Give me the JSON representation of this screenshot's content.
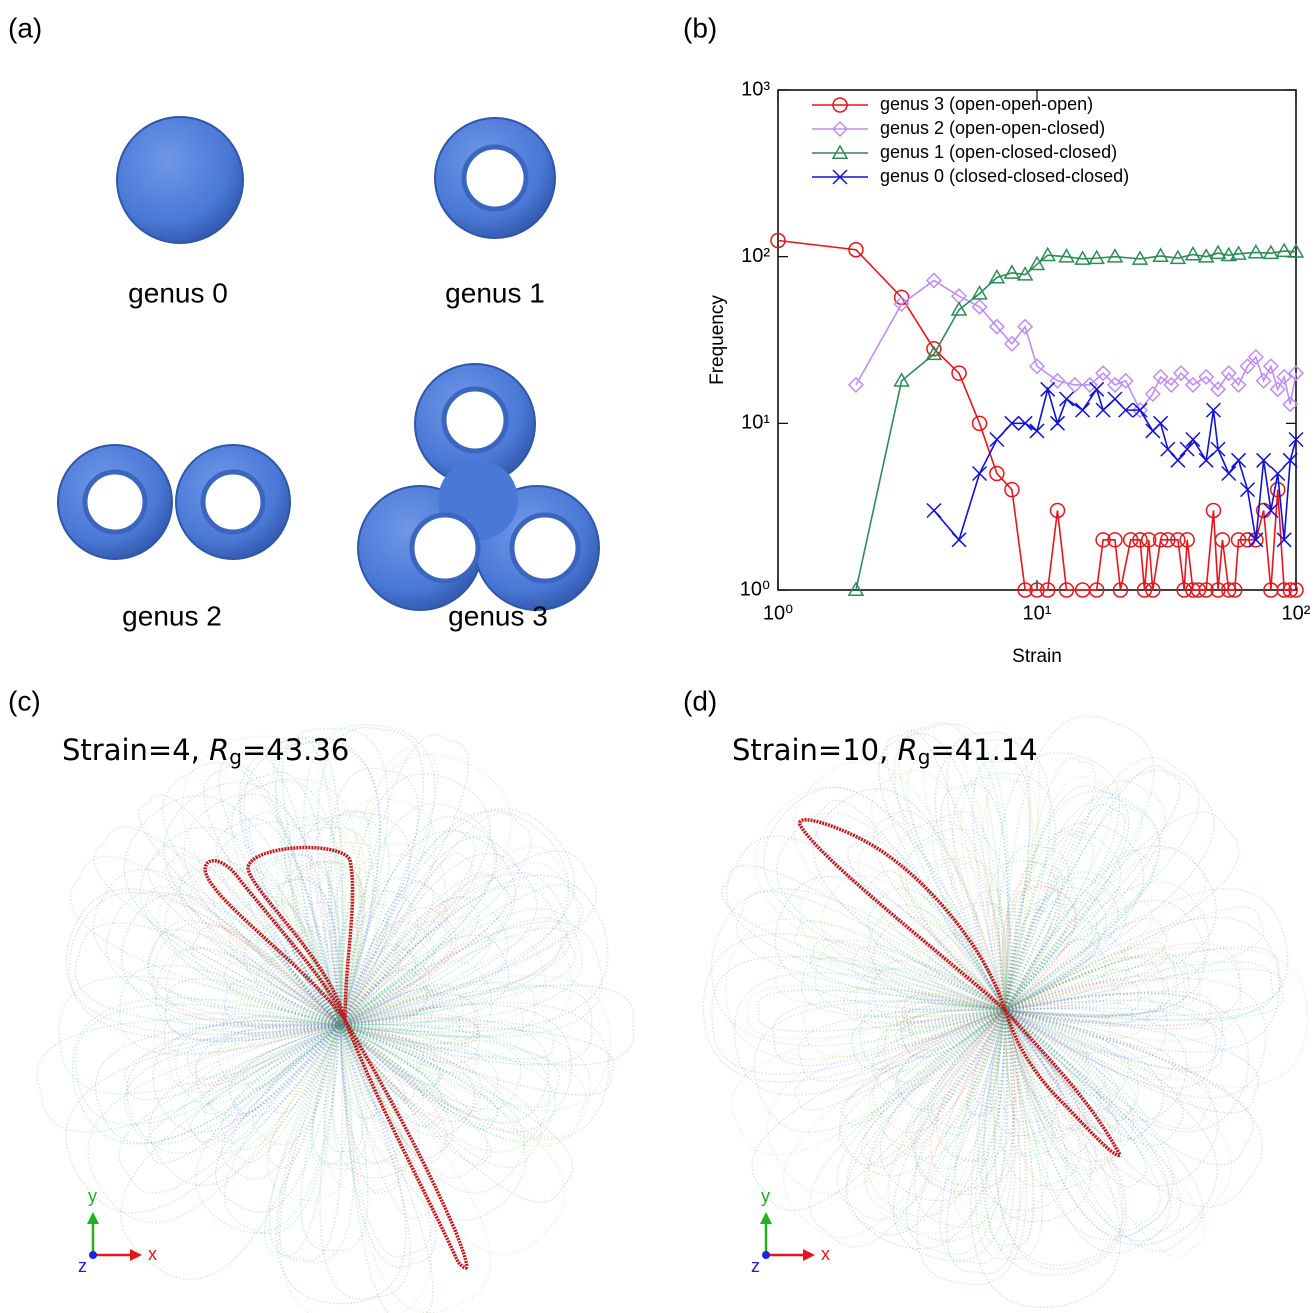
{
  "panels": {
    "a": {
      "label": "(a)",
      "genus": [
        "genus 0",
        "genus 1",
        "genus 2",
        "genus 3"
      ]
    },
    "b": {
      "label": "(b)"
    },
    "c": {
      "label": "(c)",
      "annotation": {
        "prefix": "Strain=4, ",
        "symbol": "R",
        "subscript": "g",
        "suffix": "=43.36"
      },
      "axes": [
        "x",
        "y",
        "z"
      ]
    },
    "d": {
      "label": "(d)",
      "annotation": {
        "prefix": "Strain=10, ",
        "symbol": "R",
        "subscript": "g",
        "suffix": "=41.14"
      },
      "axes": [
        "x",
        "y",
        "z"
      ]
    }
  },
  "chart_data": {
    "type": "line",
    "xlabel": "Strain",
    "ylabel": "Frequency",
    "xlog": true,
    "ylog": true,
    "legend": "upper left",
    "xlim": [
      1,
      100
    ],
    "ylim": [
      1,
      1000
    ],
    "xticks": [
      {
        "value": 1,
        "label": "10⁰"
      },
      {
        "value": 10,
        "label": "10¹"
      },
      {
        "value": 100,
        "label": "10²"
      }
    ],
    "yticks": [
      {
        "value": 1,
        "label": "10⁰"
      },
      {
        "value": 10,
        "label": "10¹"
      },
      {
        "value": 100,
        "label": "10²"
      },
      {
        "value": 1000,
        "label": "10³"
      }
    ],
    "series": [
      {
        "name": "genus 3 (open-open-open)",
        "color": "#e8141a",
        "marker": "circle",
        "x": [
          1,
          2,
          3,
          4,
          5,
          6,
          7,
          8,
          9,
          10,
          11,
          12,
          13,
          15,
          17,
          18,
          20,
          21,
          23,
          25,
          26,
          27,
          28,
          30,
          32,
          35,
          37,
          38,
          40,
          42,
          45,
          48,
          50,
          52,
          55,
          58,
          60,
          65,
          70,
          75,
          80,
          85,
          90,
          95,
          100
        ],
        "values": [
          125,
          110,
          57,
          28,
          20,
          10,
          5,
          4,
          1,
          1,
          1,
          3,
          1,
          1,
          1,
          2,
          2,
          1,
          2,
          2,
          1,
          2,
          1,
          2,
          2,
          2,
          1,
          2,
          1,
          1,
          1,
          3,
          1,
          2,
          1,
          1,
          2,
          2,
          2,
          3,
          1,
          4,
          1,
          1,
          1
        ]
      },
      {
        "name": "genus 2 (open-open-closed)",
        "color": "#c08ef0",
        "marker": "diamond",
        "x": [
          2,
          3,
          4,
          5,
          6,
          7,
          8,
          9,
          10,
          12,
          14,
          16,
          18,
          20,
          22,
          25,
          28,
          30,
          33,
          36,
          40,
          45,
          50,
          55,
          60,
          65,
          70,
          75,
          80,
          85,
          90,
          95,
          100
        ],
        "values": [
          17,
          52,
          72,
          58,
          50,
          38,
          30,
          38,
          22,
          18,
          17,
          17,
          20,
          17,
          18,
          12,
          15,
          19,
          17,
          20,
          17,
          19,
          16,
          20,
          17,
          22,
          25,
          18,
          22,
          16,
          19,
          13,
          20
        ]
      },
      {
        "name": "genus 1 (open-closed-closed)",
        "color": "#2e8b57",
        "marker": "triangle",
        "x": [
          2,
          3,
          4,
          5,
          6,
          7,
          8,
          9,
          10,
          11,
          13,
          15,
          17,
          20,
          25,
          30,
          35,
          40,
          45,
          50,
          55,
          60,
          70,
          80,
          90,
          100
        ],
        "values": [
          1,
          18,
          26,
          48,
          60,
          75,
          80,
          78,
          90,
          102,
          100,
          97,
          98,
          100,
          97,
          101,
          98,
          103,
          100,
          105,
          102,
          104,
          106,
          105,
          108,
          107
        ]
      },
      {
        "name": "genus 0 (closed-closed-closed)",
        "color": "#1010d8",
        "marker": "x",
        "x": [
          4,
          5,
          6,
          7,
          8,
          9,
          10,
          11,
          12,
          13,
          15,
          17,
          18,
          20,
          22,
          25,
          28,
          30,
          32,
          35,
          38,
          40,
          45,
          48,
          50,
          55,
          60,
          65,
          70,
          75,
          80,
          85,
          90,
          95,
          100
        ],
        "values": [
          3,
          2,
          5,
          8,
          10,
          10,
          9,
          16,
          10,
          14,
          12,
          16,
          12,
          14,
          12,
          12,
          9,
          10,
          7,
          6,
          7,
          8,
          6,
          12,
          7,
          5,
          6,
          4,
          2,
          6,
          3,
          5,
          2,
          6,
          8
        ]
      }
    ]
  }
}
